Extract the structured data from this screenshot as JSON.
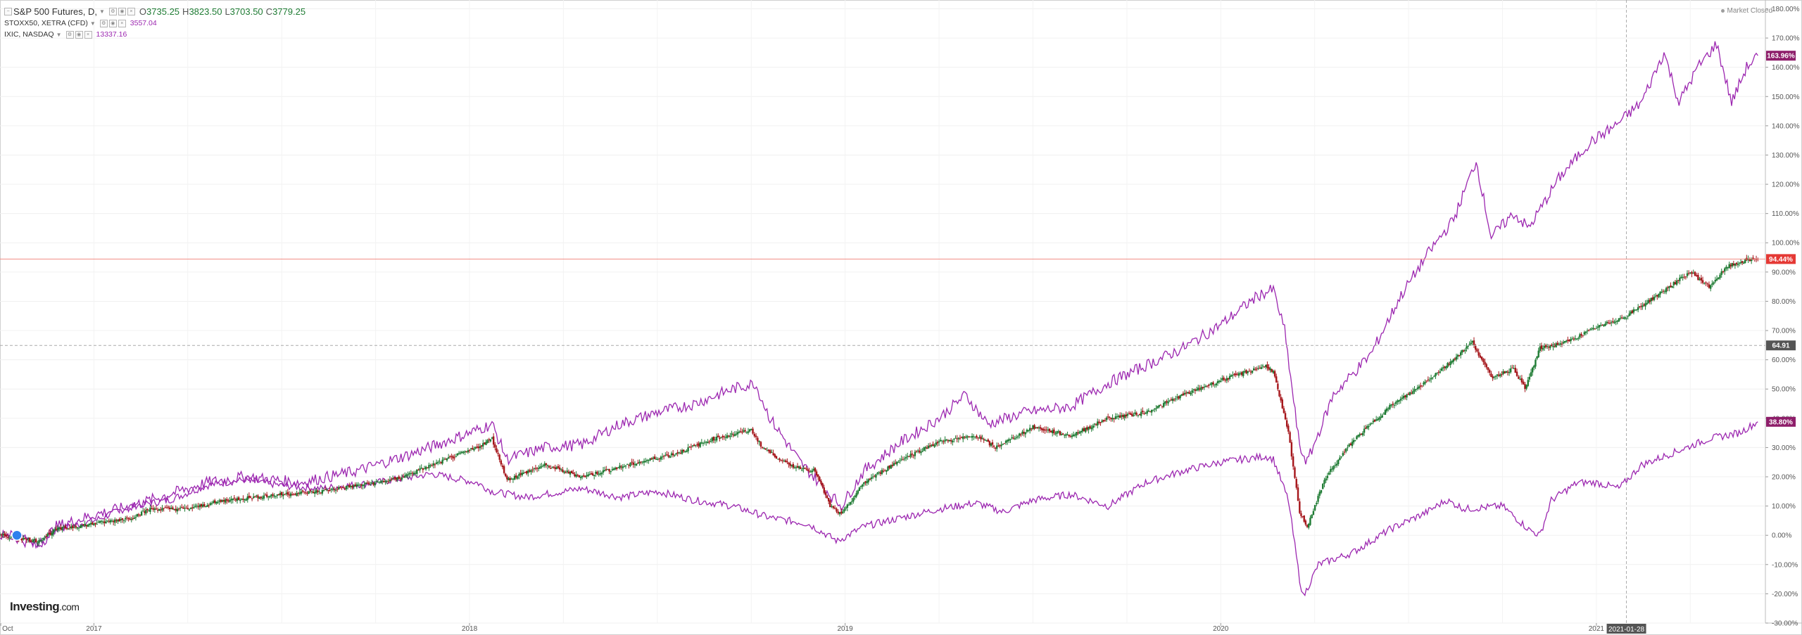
{
  "legend": {
    "main": {
      "name": "S&P 500 Futures, D,",
      "open_key": "O",
      "open": "3735.25",
      "high_key": "H",
      "high": "3823.50",
      "low_key": "L",
      "low": "3703.50",
      "close_key": "C",
      "close": "3779.25"
    },
    "compare1": {
      "name": "STOXX50, XETRA (CFD)",
      "value": "3557.04"
    },
    "compare2": {
      "name": "IXIC, NASDAQ",
      "value": "13337.16"
    }
  },
  "market_status": "Market Closed",
  "logo": {
    "main": "Investing",
    "suffix": ".com"
  },
  "colors": {
    "accent": "#9c27b0",
    "up": "#1e7b33",
    "down": "#a5151a",
    "price_line": "#f28b82",
    "label_red": "#e53935",
    "label_purple": "#8e1e6a",
    "label_dark": "#555555"
  },
  "chart_data": {
    "type": "line",
    "x_axis": {
      "tick_labels": [
        "Oct",
        "2017",
        "2018",
        "2019",
        "2020",
        "2021"
      ],
      "crosshair_label": "2021-01-28"
    },
    "y_axis": {
      "ylim": [
        -30,
        183
      ],
      "unit": "%",
      "tick_labels": [
        "180.00%",
        "170.00%",
        "160.00%",
        "150.00%",
        "140.00%",
        "130.00%",
        "120.00%",
        "110.00%",
        "100.00%",
        "90.00%",
        "80.00%",
        "70.00%",
        "60.00%",
        "50.00%",
        "40.00%",
        "30.00%",
        "20.00%",
        "10.00%",
        "0.00%",
        "-10.00%",
        "-20.00%",
        "-30.00%"
      ],
      "tick_values": [
        180,
        170,
        160,
        150,
        140,
        130,
        120,
        110,
        100,
        90,
        80,
        70,
        60,
        50,
        40,
        30,
        20,
        10,
        0,
        -10,
        -20,
        -30
      ]
    },
    "grid": true,
    "value_labels": [
      {
        "text": "163.96%",
        "value": 163.96,
        "style": "purple"
      },
      {
        "text": "94.44%",
        "value": 94.44,
        "style": "red"
      },
      {
        "text": "64.91",
        "value": 64.91,
        "style": "dark"
      },
      {
        "text": "38.80%",
        "value": 38.8,
        "style": "purple"
      }
    ],
    "price_line_value": 94.44,
    "crosshair_value": 64.91,
    "series": [
      {
        "style": "candles",
        "points": [
          [
            2016.75,
            0
          ],
          [
            2016.8,
            -1
          ],
          [
            2016.85,
            -2
          ],
          [
            2016.9,
            2
          ],
          [
            2017,
            4
          ],
          [
            2017.1,
            6
          ],
          [
            2017.15,
            9
          ],
          [
            2017.25,
            9
          ],
          [
            2017.35,
            12
          ],
          [
            2017.5,
            14
          ],
          [
            2017.6,
            15
          ],
          [
            2017.7,
            17
          ],
          [
            2017.8,
            19
          ],
          [
            2017.92,
            25
          ],
          [
            2018.02,
            30
          ],
          [
            2018.06,
            33
          ],
          [
            2018.1,
            19
          ],
          [
            2018.2,
            24
          ],
          [
            2018.3,
            20
          ],
          [
            2018.42,
            24
          ],
          [
            2018.55,
            28
          ],
          [
            2018.65,
            33
          ],
          [
            2018.75,
            36
          ],
          [
            2018.78,
            30
          ],
          [
            2018.85,
            24
          ],
          [
            2018.92,
            22
          ],
          [
            2018.96,
            10
          ],
          [
            2018.99,
            7
          ],
          [
            2019.05,
            18
          ],
          [
            2019.15,
            26
          ],
          [
            2019.25,
            32
          ],
          [
            2019.35,
            34
          ],
          [
            2019.4,
            30
          ],
          [
            2019.5,
            37
          ],
          [
            2019.6,
            34
          ],
          [
            2019.7,
            40
          ],
          [
            2019.8,
            42
          ],
          [
            2019.9,
            48
          ],
          [
            2020,
            53
          ],
          [
            2020.12,
            58
          ],
          [
            2020.14,
            56
          ],
          [
            2020.18,
            35
          ],
          [
            2020.21,
            8
          ],
          [
            2020.23,
            3
          ],
          [
            2020.28,
            20
          ],
          [
            2020.35,
            32
          ],
          [
            2020.45,
            44
          ],
          [
            2020.52,
            50
          ],
          [
            2020.6,
            58
          ],
          [
            2020.67,
            66
          ],
          [
            2020.72,
            54
          ],
          [
            2020.78,
            57
          ],
          [
            2020.81,
            50
          ],
          [
            2020.85,
            64
          ],
          [
            2020.92,
            66
          ],
          [
            2021,
            71
          ],
          [
            2021.08,
            75
          ],
          [
            2021.15,
            81
          ],
          [
            2021.25,
            90
          ],
          [
            2021.3,
            85
          ],
          [
            2021.35,
            92
          ],
          [
            2021.4,
            94
          ],
          [
            2021.43,
            94.4
          ]
        ]
      },
      {
        "name": "STOXX50, XETRA (CFD)",
        "style": "line",
        "points": [
          [
            2016.75,
            0
          ],
          [
            2016.8,
            1
          ],
          [
            2016.85,
            -3
          ],
          [
            2016.9,
            2
          ],
          [
            2017,
            5
          ],
          [
            2017.1,
            10
          ],
          [
            2017.2,
            12
          ],
          [
            2017.3,
            17
          ],
          [
            2017.4,
            19
          ],
          [
            2017.5,
            17
          ],
          [
            2017.6,
            16
          ],
          [
            2017.75,
            18
          ],
          [
            2017.9,
            21
          ],
          [
            2018.02,
            18
          ],
          [
            2018.06,
            15
          ],
          [
            2018.15,
            13
          ],
          [
            2018.3,
            16
          ],
          [
            2018.4,
            13
          ],
          [
            2018.5,
            15
          ],
          [
            2018.6,
            12
          ],
          [
            2018.7,
            10
          ],
          [
            2018.8,
            6
          ],
          [
            2018.9,
            4
          ],
          [
            2018.98,
            -2
          ],
          [
            2019.05,
            3
          ],
          [
            2019.15,
            6
          ],
          [
            2019.25,
            9
          ],
          [
            2019.35,
            11
          ],
          [
            2019.42,
            8
          ],
          [
            2019.5,
            12
          ],
          [
            2019.6,
            14
          ],
          [
            2019.7,
            10
          ],
          [
            2019.8,
            18
          ],
          [
            2019.9,
            22
          ],
          [
            2020,
            25
          ],
          [
            2020.12,
            27
          ],
          [
            2020.14,
            26
          ],
          [
            2020.18,
            12
          ],
          [
            2020.21,
            -15
          ],
          [
            2020.22,
            -21
          ],
          [
            2020.26,
            -10
          ],
          [
            2020.35,
            -6
          ],
          [
            2020.45,
            2
          ],
          [
            2020.55,
            8
          ],
          [
            2020.6,
            12
          ],
          [
            2020.65,
            9
          ],
          [
            2020.75,
            10
          ],
          [
            2020.82,
            2
          ],
          [
            2020.85,
            0
          ],
          [
            2020.88,
            12
          ],
          [
            2020.95,
            18
          ],
          [
            2021,
            18
          ],
          [
            2021.06,
            16
          ],
          [
            2021.12,
            24
          ],
          [
            2021.2,
            28
          ],
          [
            2021.3,
            33
          ],
          [
            2021.38,
            35
          ],
          [
            2021.43,
            38.8
          ]
        ]
      },
      {
        "name": "IXIC, NASDAQ",
        "style": "line",
        "points": [
          [
            2016.75,
            0
          ],
          [
            2016.8,
            -1
          ],
          [
            2016.85,
            -4
          ],
          [
            2016.9,
            3
          ],
          [
            2017,
            7
          ],
          [
            2017.1,
            10
          ],
          [
            2017.2,
            14
          ],
          [
            2017.3,
            18
          ],
          [
            2017.4,
            20
          ],
          [
            2017.55,
            18
          ],
          [
            2017.7,
            22
          ],
          [
            2017.85,
            28
          ],
          [
            2018,
            35
          ],
          [
            2018.06,
            38
          ],
          [
            2018.1,
            26
          ],
          [
            2018.2,
            30
          ],
          [
            2018.3,
            31
          ],
          [
            2018.4,
            38
          ],
          [
            2018.5,
            42
          ],
          [
            2018.6,
            45
          ],
          [
            2018.7,
            50
          ],
          [
            2018.76,
            52
          ],
          [
            2018.8,
            40
          ],
          [
            2018.88,
            25
          ],
          [
            2018.96,
            14
          ],
          [
            2018.99,
            10
          ],
          [
            2019.05,
            22
          ],
          [
            2019.15,
            32
          ],
          [
            2019.25,
            40
          ],
          [
            2019.32,
            48
          ],
          [
            2019.38,
            38
          ],
          [
            2019.48,
            42
          ],
          [
            2019.6,
            44
          ],
          [
            2019.7,
            52
          ],
          [
            2019.8,
            58
          ],
          [
            2019.9,
            64
          ],
          [
            2020,
            72
          ],
          [
            2020.1,
            82
          ],
          [
            2020.14,
            84
          ],
          [
            2020.17,
            70
          ],
          [
            2020.21,
            30
          ],
          [
            2020.23,
            25
          ],
          [
            2020.3,
            48
          ],
          [
            2020.4,
            62
          ],
          [
            2020.48,
            82
          ],
          [
            2020.55,
            96
          ],
          [
            2020.62,
            108
          ],
          [
            2020.68,
            128
          ],
          [
            2020.72,
            102
          ],
          [
            2020.78,
            110
          ],
          [
            2020.82,
            105
          ],
          [
            2020.9,
            122
          ],
          [
            2020.98,
            134
          ],
          [
            2021.05,
            140
          ],
          [
            2021.12,
            148
          ],
          [
            2021.18,
            165
          ],
          [
            2021.22,
            148
          ],
          [
            2021.27,
            160
          ],
          [
            2021.32,
            168
          ],
          [
            2021.36,
            148
          ],
          [
            2021.4,
            160
          ],
          [
            2021.43,
            164
          ]
        ]
      }
    ]
  }
}
